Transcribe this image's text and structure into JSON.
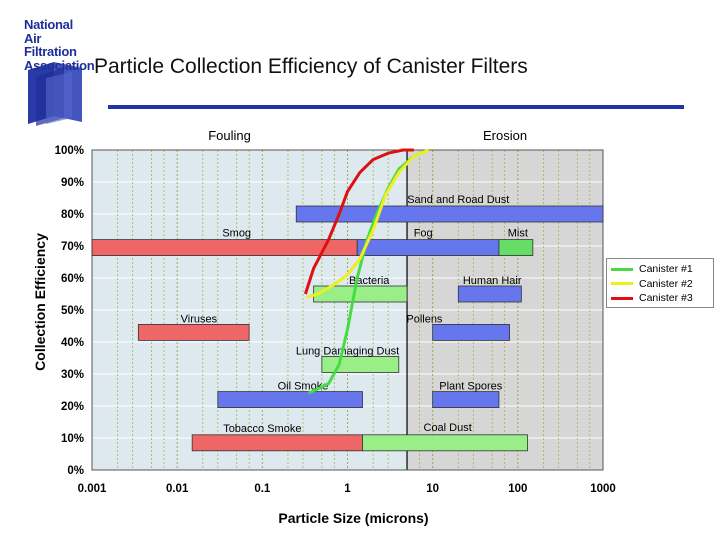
{
  "logo": {
    "text": "National\nAir\nFiltration\nAssociation",
    "color": "#1f2f99"
  },
  "header": {
    "title": "Particle Collection Efficiency of Canister Filters",
    "rule_color": "#2233aa"
  },
  "chart_data": {
    "type": "line",
    "title": "Particle Collection Efficiency of Canister Filters",
    "xlabel": "Particle Size (microns)",
    "ylabel": "Collection Efficiency",
    "x_scale": "log",
    "xlim": [
      0.001,
      1000
    ],
    "ylim": [
      0,
      100
    ],
    "x_ticks": [
      0.001,
      0.01,
      0.1,
      1,
      10,
      100,
      1000
    ],
    "x_tick_labels": [
      "0.001",
      "0.01",
      "0.1",
      "1",
      "10",
      "100",
      "1000"
    ],
    "y_ticks": [
      0,
      10,
      20,
      30,
      40,
      50,
      60,
      70,
      80,
      90,
      100
    ],
    "y_tick_labels": [
      "0%",
      "10%",
      "20%",
      "30%",
      "40%",
      "50%",
      "60%",
      "70%",
      "80%",
      "90%",
      "100%"
    ],
    "zones": [
      {
        "label": "Fouling",
        "from": 0.001,
        "to": 5,
        "color": "#dde9ee"
      },
      {
        "label": "Erosion",
        "from": 5,
        "to": 1000,
        "color": "#d6d6d6"
      }
    ],
    "legend_position": "right",
    "series": [
      {
        "name": "Canister #1",
        "color": "#44dd44",
        "x": [
          0.35,
          0.6,
          0.8,
          1.0,
          1.3,
          1.7,
          2.2,
          3.0,
          4.0,
          6.0,
          9.0
        ],
        "y": [
          24,
          27,
          33,
          44,
          60,
          72,
          80,
          88,
          94,
          98,
          100
        ]
      },
      {
        "name": "Canister #2",
        "color": "#eeee22",
        "x": [
          0.33,
          0.45,
          0.7,
          1.0,
          1.4,
          2.0,
          2.8,
          4.0,
          6.0,
          9.0
        ],
        "y": [
          54,
          55,
          58,
          61,
          66,
          75,
          86,
          93,
          98,
          100
        ]
      },
      {
        "name": "Canister #3",
        "color": "#dd1111",
        "x": [
          0.32,
          0.4,
          0.6,
          0.8,
          1.0,
          1.4,
          2.0,
          3.0,
          4.5,
          6.0
        ],
        "y": [
          55,
          63,
          72,
          80,
          87,
          93,
          97,
          99,
          100,
          100
        ]
      }
    ],
    "ranges": [
      {
        "label": "Sand and Road Dust",
        "from": 0.25,
        "to": 1000,
        "y": 80,
        "color": "#6677ee"
      },
      {
        "label": "Smog",
        "from": 0.001,
        "to": 1.3,
        "y": 69.5,
        "color": "#ee6666"
      },
      {
        "label": "Fog",
        "from": 1.3,
        "to": 60,
        "y": 69.5,
        "color": "#6677ee"
      },
      {
        "label": "Mist",
        "from": 60,
        "to": 150,
        "y": 69.5,
        "color": "#66dd66"
      },
      {
        "label": "Bacteria",
        "from": 0.4,
        "to": 5,
        "y": 55,
        "color": "#99ee88"
      },
      {
        "label": "Human Hair",
        "from": 20,
        "to": 110,
        "y": 55,
        "color": "#6677ee"
      },
      {
        "label": "Viruses",
        "from": 0.0035,
        "to": 0.07,
        "y": 43,
        "color": "#ee6666"
      },
      {
        "label": "Pollens",
        "from": 10,
        "to": 80,
        "y": 43,
        "color": "#6677ee"
      },
      {
        "label": "Lung Damaging Dust",
        "from": 0.5,
        "to": 4,
        "y": 33,
        "color": "#99ee88"
      },
      {
        "label": "Oil Smoke",
        "from": 0.03,
        "to": 1.5,
        "y": 22,
        "color": "#6677ee"
      },
      {
        "label": "Plant Spores",
        "from": 10,
        "to": 60,
        "y": 22,
        "color": "#6677ee"
      },
      {
        "label": "Tobacco Smoke",
        "from": 0.015,
        "to": 1.5,
        "y": 8.5,
        "color": "#ee6666"
      },
      {
        "label": "Coal Dust",
        "from": 1.5,
        "to": 130,
        "y": 8.5,
        "color": "#99ee88"
      }
    ]
  }
}
